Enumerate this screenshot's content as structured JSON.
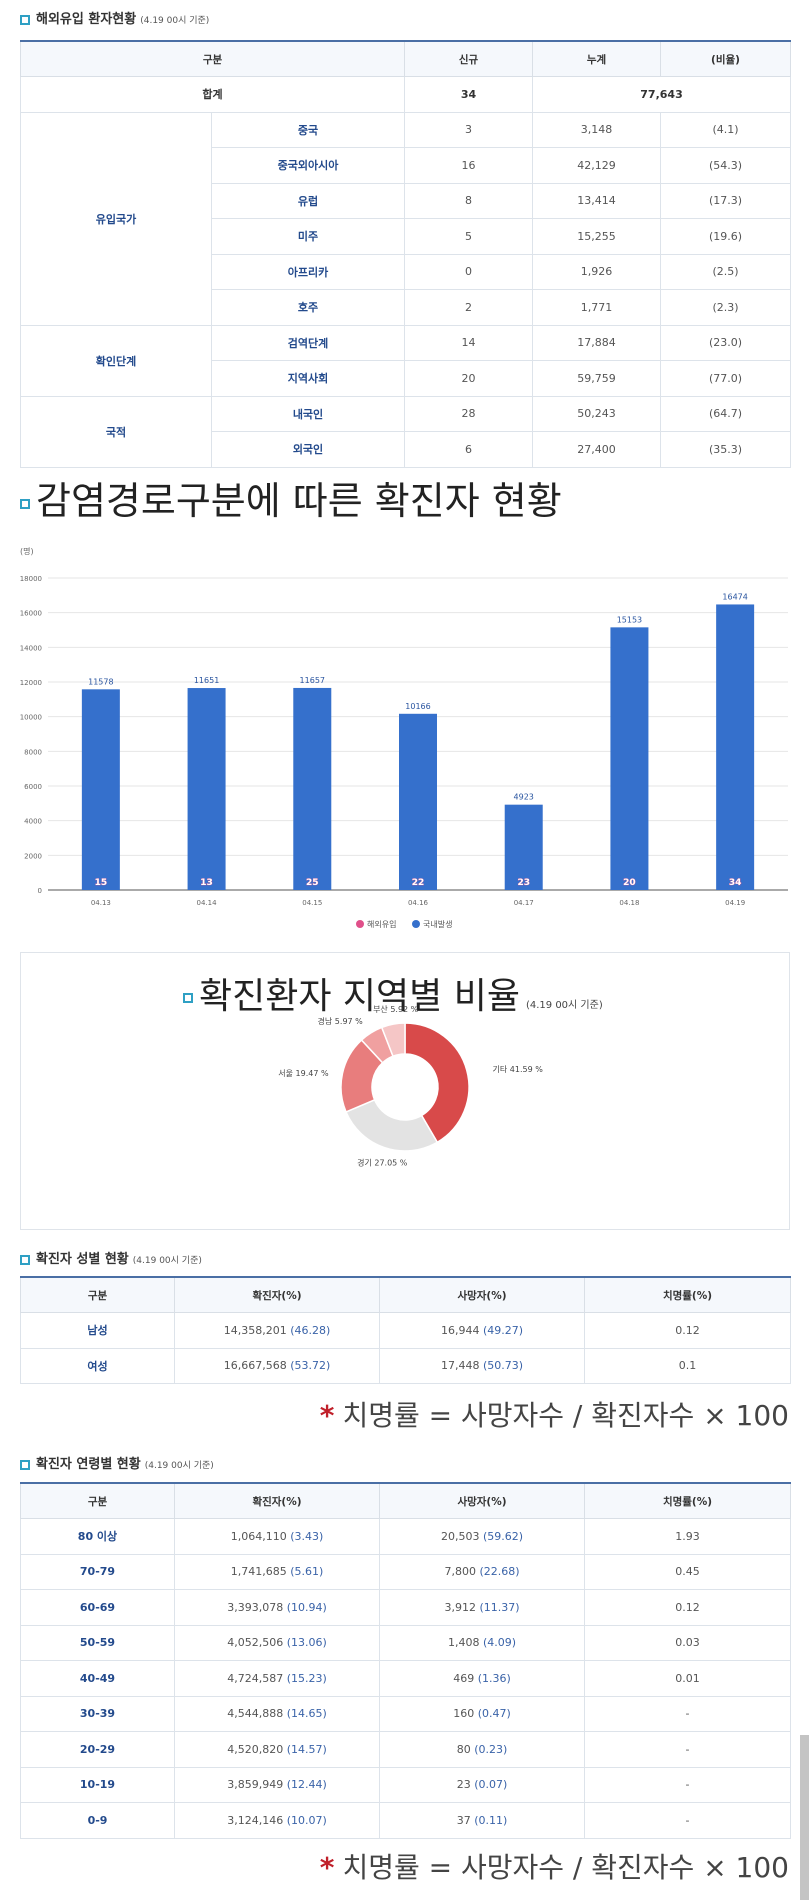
{
  "section1": {
    "title": "해외유입 환자현황",
    "date": "(4.19 00시 기준)",
    "headers": [
      "구분",
      "신규",
      "누계",
      "(비율)"
    ],
    "total": {
      "label": "합계",
      "new": "34",
      "cumulative": "77,643"
    },
    "groups": [
      {
        "label": "유입국가",
        "rows": [
          {
            "label": "중국",
            "new": "3",
            "cum": "3,148",
            "ratio": "(4.1)"
          },
          {
            "label": "중국외아시아",
            "new": "16",
            "cum": "42,129",
            "ratio": "(54.3)"
          },
          {
            "label": "유럽",
            "new": "8",
            "cum": "13,414",
            "ratio": "(17.3)"
          },
          {
            "label": "미주",
            "new": "5",
            "cum": "15,255",
            "ratio": "(19.6)"
          },
          {
            "label": "아프리카",
            "new": "0",
            "cum": "1,926",
            "ratio": "(2.5)"
          },
          {
            "label": "호주",
            "new": "2",
            "cum": "1,771",
            "ratio": "(2.3)"
          }
        ]
      },
      {
        "label": "확인단계",
        "rows": [
          {
            "label": "검역단계",
            "new": "14",
            "cum": "17,884",
            "ratio": "(23.0)"
          },
          {
            "label": "지역사회",
            "new": "20",
            "cum": "59,759",
            "ratio": "(77.0)"
          }
        ]
      },
      {
        "label": "국적",
        "rows": [
          {
            "label": "내국인",
            "new": "28",
            "cum": "50,243",
            "ratio": "(64.7)"
          },
          {
            "label": "외국인",
            "new": "6",
            "cum": "27,400",
            "ratio": "(35.3)"
          }
        ]
      }
    ]
  },
  "section2": {
    "title": "감염경로구분에 따른 확진자 현황"
  },
  "chart_data": [
    {
      "type": "bar",
      "ylabel": "(명)",
      "ylim": [
        0,
        18000
      ],
      "yticks": [
        0,
        2000,
        4000,
        6000,
        8000,
        10000,
        12000,
        14000,
        16000,
        18000
      ],
      "categories": [
        "04.13",
        "04.14",
        "04.15",
        "04.16",
        "04.17",
        "04.18",
        "04.19"
      ],
      "series": [
        {
          "name": "해외유입",
          "color": "#e0508a",
          "values": [
            15,
            13,
            25,
            22,
            23,
            20,
            34
          ]
        },
        {
          "name": "국내발생",
          "color": "#3570cc",
          "values": [
            11578,
            11651,
            11657,
            10166,
            4923,
            15153,
            16474
          ]
        }
      ],
      "legend": "bottom-center",
      "grid": true
    },
    {
      "type": "pie",
      "title": "확진환자 지역별 비율",
      "date": "(4.19 00시 기준)",
      "slices": [
        {
          "label": "기타",
          "value": 41.59,
          "text": "기타 41.59 %",
          "color": "#d84a4a"
        },
        {
          "label": "경기",
          "value": 27.05,
          "text": "경기 27.05 %",
          "color": "#e3e3e3"
        },
        {
          "label": "서울",
          "value": 19.47,
          "text": "서울 19.47 %",
          "color": "#e87d7d"
        },
        {
          "label": "경남",
          "value": 5.97,
          "text": "경남 5.97 %",
          "color": "#f0a0a0"
        },
        {
          "label": "부산",
          "value": 5.92,
          "text": "부산 5.92 %",
          "color": "#f5c6c6"
        }
      ],
      "donut": true
    }
  ],
  "section4": {
    "title": "확진자 성별 현황",
    "date": "(4.19 00시 기준)",
    "headers": [
      "구분",
      "확진자(%)",
      "사망자(%)",
      "치명률(%)"
    ],
    "rows": [
      {
        "label": "남성",
        "cases": "14,358,201",
        "cases_pct": "(46.28)",
        "deaths": "16,944",
        "deaths_pct": "(49.27)",
        "cfr": "0.12"
      },
      {
        "label": "여성",
        "cases": "16,667,568",
        "cases_pct": "(53.72)",
        "deaths": "17,448",
        "deaths_pct": "(50.73)",
        "cfr": "0.1"
      }
    ]
  },
  "formula": {
    "star": "*",
    "text": "치명률 = 사망자수 / 확진자수 × 100"
  },
  "section5": {
    "title": "확진자 연령별 현황",
    "date": "(4.19 00시 기준)",
    "headers": [
      "구분",
      "확진자(%)",
      "사망자(%)",
      "치명률(%)"
    ],
    "rows": [
      {
        "label": "80 이상",
        "cases": "1,064,110",
        "cases_pct": "(3.43)",
        "deaths": "20,503",
        "deaths_pct": "(59.62)",
        "cfr": "1.93"
      },
      {
        "label": "70-79",
        "cases": "1,741,685",
        "cases_pct": "(5.61)",
        "deaths": "7,800",
        "deaths_pct": "(22.68)",
        "cfr": "0.45"
      },
      {
        "label": "60-69",
        "cases": "3,393,078",
        "cases_pct": "(10.94)",
        "deaths": "3,912",
        "deaths_pct": "(11.37)",
        "cfr": "0.12"
      },
      {
        "label": "50-59",
        "cases": "4,052,506",
        "cases_pct": "(13.06)",
        "deaths": "1,408",
        "deaths_pct": "(4.09)",
        "cfr": "0.03"
      },
      {
        "label": "40-49",
        "cases": "4,724,587",
        "cases_pct": "(15.23)",
        "deaths": "469",
        "deaths_pct": "(1.36)",
        "cfr": "0.01"
      },
      {
        "label": "30-39",
        "cases": "4,544,888",
        "cases_pct": "(14.65)",
        "deaths": "160",
        "deaths_pct": "(0.47)",
        "cfr": "-"
      },
      {
        "label": "20-29",
        "cases": "4,520,820",
        "cases_pct": "(14.57)",
        "deaths": "80",
        "deaths_pct": "(0.23)",
        "cfr": "-"
      },
      {
        "label": "10-19",
        "cases": "3,859,949",
        "cases_pct": "(12.44)",
        "deaths": "23",
        "deaths_pct": "(0.07)",
        "cfr": "-"
      },
      {
        "label": "0-9",
        "cases": "3,124,146",
        "cases_pct": "(10.07)",
        "deaths": "37",
        "deaths_pct": "(0.11)",
        "cfr": "-"
      }
    ]
  }
}
